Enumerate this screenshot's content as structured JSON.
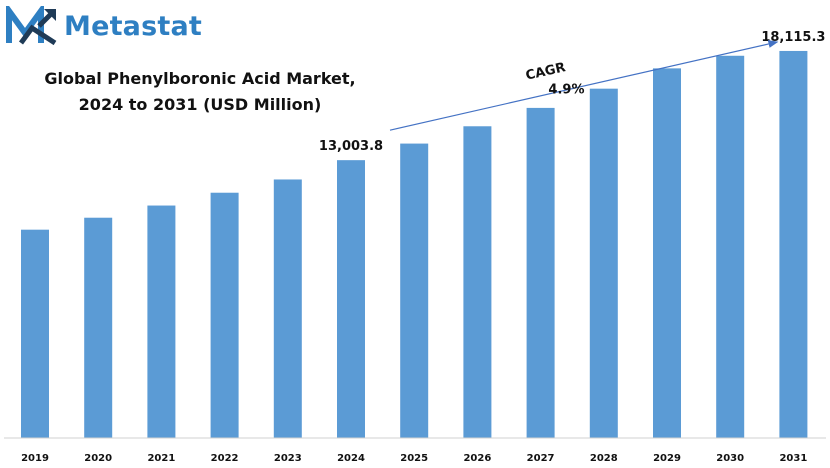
{
  "brand": {
    "name": "Metastat",
    "logo_icon": "metastat-logo-icon",
    "color": "#2e7fc2"
  },
  "chart_data": {
    "type": "bar",
    "title_lines": [
      "Global Phenylboronic Acid Market,",
      "2024 to 2031 (USD Million)"
    ],
    "categories": [
      "2019",
      "2020",
      "2021",
      "2022",
      "2023",
      "2024",
      "2025",
      "2026",
      "2027",
      "2028",
      "2029",
      "2030",
      "2031"
    ],
    "values": [
      9750,
      10310,
      10880,
      11480,
      12100,
      13003.8,
      13780,
      14590,
      15450,
      16350,
      17300,
      17890,
      18115.3
    ],
    "value_labels": [
      {
        "category": "2024",
        "text": "13,003.8"
      },
      {
        "category": "2031",
        "text": "18,115.3"
      }
    ],
    "annotation": {
      "label": "CAGR",
      "value": "4.9%",
      "from": "2024",
      "to": "2031"
    },
    "ylim": [
      0,
      20500
    ],
    "bar_color": "#5b9bd5",
    "arrow_color": "#4472c4",
    "grid": false,
    "legend": "none"
  }
}
